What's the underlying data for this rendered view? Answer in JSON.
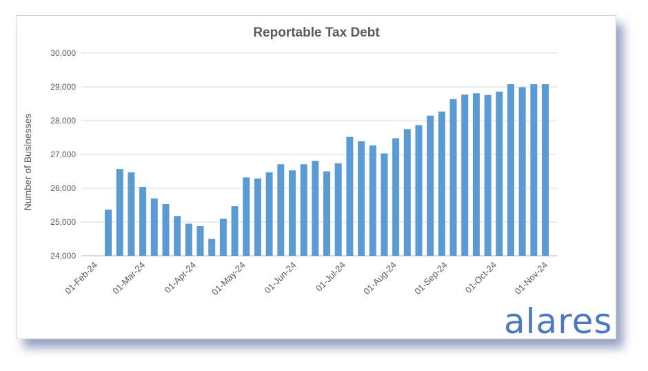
{
  "brand": {
    "logo_text": "alares",
    "accent": "#4a78c2"
  },
  "chart_data": {
    "type": "bar",
    "title": "Reportable Tax Debt",
    "xlabel": "",
    "ylabel": "Number of Businesses",
    "ylim": [
      24000,
      30000
    ],
    "yticks": [
      24000,
      25000,
      26000,
      27000,
      28000,
      29000,
      30000
    ],
    "ytick_labels": [
      "24,000",
      "25,000",
      "26,000",
      "27,000",
      "28,000",
      "29,000",
      "30,000"
    ],
    "xlim": [
      "2024-02-01",
      "2024-11-01"
    ],
    "xticks": [
      "2024-02-01",
      "2024-03-01",
      "2024-04-01",
      "2024-05-01",
      "2024-06-01",
      "2024-07-01",
      "2024-08-01",
      "2024-09-01",
      "2024-10-01",
      "2024-11-01"
    ],
    "xtick_labels": [
      "01-Feb-24",
      "01-Mar-24",
      "01-Apr-24",
      "01-May-24",
      "01-Jun-24",
      "01-Jul-24",
      "01-Aug-24",
      "01-Sep-24",
      "01-Oct-24",
      "01-Nov-24"
    ],
    "grid": true,
    "bar_color": "#5b9bd5",
    "x": [
      "2024-02-09",
      "2024-02-16",
      "2024-02-23",
      "2024-03-01",
      "2024-03-08",
      "2024-03-15",
      "2024-03-22",
      "2024-03-29",
      "2024-04-05",
      "2024-04-12",
      "2024-04-19",
      "2024-04-26",
      "2024-05-03",
      "2024-05-10",
      "2024-05-17",
      "2024-05-24",
      "2024-05-31",
      "2024-06-07",
      "2024-06-14",
      "2024-06-21",
      "2024-06-28",
      "2024-07-05",
      "2024-07-12",
      "2024-07-19",
      "2024-07-26",
      "2024-08-02",
      "2024-08-09",
      "2024-08-16",
      "2024-08-23",
      "2024-08-30",
      "2024-09-06",
      "2024-09-13",
      "2024-09-20",
      "2024-09-27",
      "2024-10-04",
      "2024-10-11",
      "2024-10-18",
      "2024-10-25",
      "2024-11-01"
    ],
    "values": [
      25370,
      26570,
      26470,
      26040,
      25700,
      25530,
      25180,
      24950,
      24880,
      24500,
      25100,
      25470,
      26320,
      26290,
      26470,
      26710,
      26530,
      26710,
      26810,
      26500,
      26740,
      27520,
      27390,
      27270,
      27030,
      27480,
      27750,
      27870,
      28150,
      28270,
      28640,
      28770,
      28810,
      28760,
      28860,
      29080,
      28990,
      29080,
      29080
    ]
  }
}
